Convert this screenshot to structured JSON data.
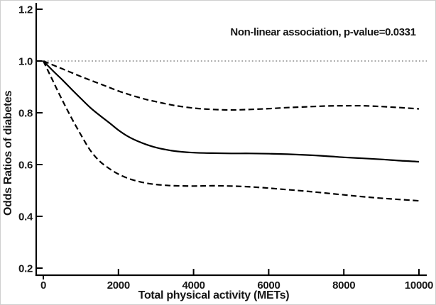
{
  "chart_data": {
    "type": "line",
    "title": "",
    "annotation": "Non-linear association, p-value=0.0331",
    "xlabel": "Total physical activity (METs)",
    "ylabel": "Odds Ratios of diabetes",
    "xlim": [
      0,
      10200
    ],
    "ylim": [
      0.17,
      1.22
    ],
    "grid": false,
    "legend": "none",
    "x_ticks": [
      0,
      2000,
      4000,
      6000,
      8000,
      10000
    ],
    "x_tick_labels": [
      "0",
      "2000",
      "4000",
      "6000",
      "8000",
      "10000"
    ],
    "y_ticks": [
      0.2,
      0.4,
      0.6,
      0.8,
      1.0,
      1.2
    ],
    "y_tick_labels": [
      "0.2",
      "0.4",
      "0.6",
      "0.8",
      "1.0",
      "1.2"
    ],
    "reference_line": {
      "y": 1.0,
      "style": "dotted",
      "color": "#8a8a8a"
    },
    "x": [
      0,
      250,
      500,
      750,
      1000,
      1250,
      1500,
      1750,
      2000,
      2250,
      2500,
      2750,
      3000,
      3250,
      3500,
      4000,
      4500,
      5000,
      5500,
      6000,
      6500,
      7000,
      7500,
      8000,
      8500,
      9000,
      9500,
      10000
    ],
    "series": [
      {
        "name": "odds-ratio",
        "label": "Odds ratio point estimate",
        "style": "solid",
        "color": "#000000",
        "values": [
          1.0,
          0.963,
          0.928,
          0.891,
          0.855,
          0.82,
          0.79,
          0.762,
          0.733,
          0.709,
          0.691,
          0.677,
          0.666,
          0.658,
          0.652,
          0.646,
          0.644,
          0.643,
          0.643,
          0.642,
          0.64,
          0.637,
          0.633,
          0.628,
          0.624,
          0.62,
          0.615,
          0.611
        ]
      },
      {
        "name": "upper-95ci",
        "label": "Upper 95% confidence limit",
        "style": "dashed",
        "color": "#000000",
        "values": [
          1.0,
          0.985,
          0.97,
          0.955,
          0.94,
          0.926,
          0.912,
          0.898,
          0.884,
          0.872,
          0.861,
          0.851,
          0.843,
          0.835,
          0.828,
          0.818,
          0.813,
          0.811,
          0.813,
          0.816,
          0.82,
          0.823,
          0.826,
          0.827,
          0.827,
          0.824,
          0.82,
          0.815
        ]
      },
      {
        "name": "lower-95ci",
        "label": "Lower 95% confidence limit",
        "style": "dashed",
        "color": "#000000",
        "values": [
          1.0,
          0.925,
          0.85,
          0.78,
          0.715,
          0.655,
          0.613,
          0.585,
          0.563,
          0.547,
          0.536,
          0.528,
          0.523,
          0.52,
          0.518,
          0.517,
          0.518,
          0.517,
          0.514,
          0.509,
          0.503,
          0.497,
          0.49,
          0.483,
          0.476,
          0.47,
          0.465,
          0.46
        ]
      }
    ],
    "colors": {
      "axis": "#000000",
      "text": "#161616",
      "background": "#ffffff",
      "reference": "#8a8a8a"
    }
  }
}
